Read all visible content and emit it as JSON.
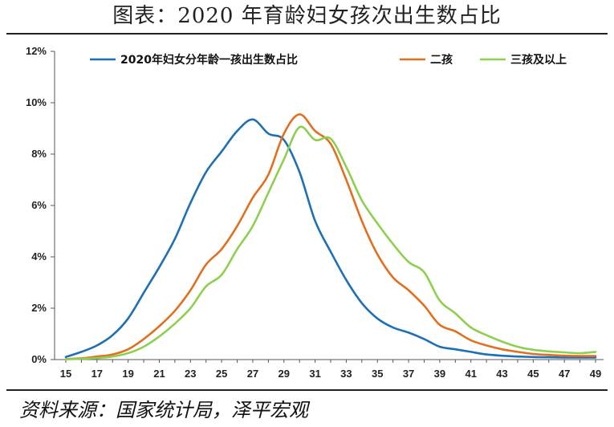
{
  "page": {
    "title": "图表：2020 年育龄妇女孩次出生数占比",
    "source": "资料来源：国家统计局，泽平宏观"
  },
  "chart_data": {
    "type": "line",
    "title": "图表：2020 年育龄妇女孩次出生数占比",
    "xlabel": "",
    "ylabel": "",
    "x": [
      15,
      16,
      17,
      18,
      19,
      20,
      21,
      22,
      23,
      24,
      25,
      26,
      27,
      28,
      29,
      30,
      31,
      32,
      33,
      34,
      35,
      36,
      37,
      38,
      39,
      40,
      41,
      42,
      43,
      44,
      45,
      46,
      47,
      48,
      49
    ],
    "xticks": [
      15,
      17,
      19,
      21,
      23,
      25,
      27,
      29,
      31,
      33,
      35,
      37,
      39,
      41,
      43,
      45,
      47,
      49
    ],
    "xlim": [
      15,
      49
    ],
    "ylim": [
      0,
      12
    ],
    "yticks": [
      0,
      2,
      4,
      6,
      8,
      10,
      12
    ],
    "ytick_format": "percent",
    "grid": false,
    "legend": "top",
    "series": [
      {
        "name": "2020年妇女分年龄一孩出生数占比",
        "color": "#1f6fb5",
        "values": [
          0.1,
          0.3,
          0.55,
          0.95,
          1.6,
          2.6,
          3.6,
          4.7,
          6.1,
          7.3,
          8.1,
          8.9,
          9.35,
          8.8,
          8.55,
          7.3,
          5.4,
          4.2,
          3.1,
          2.2,
          1.6,
          1.25,
          1.05,
          0.8,
          0.5,
          0.4,
          0.3,
          0.2,
          0.15,
          0.12,
          0.1,
          0.09,
          0.08,
          0.08,
          0.08
        ]
      },
      {
        "name": "二孩",
        "color": "#e07020",
        "values": [
          0.02,
          0.05,
          0.12,
          0.2,
          0.4,
          0.8,
          1.3,
          1.9,
          2.7,
          3.7,
          4.3,
          5.2,
          6.3,
          7.2,
          8.8,
          9.55,
          8.9,
          8.4,
          7.0,
          5.4,
          4.1,
          3.2,
          2.7,
          2.1,
          1.35,
          1.1,
          0.75,
          0.55,
          0.4,
          0.3,
          0.22,
          0.18,
          0.15,
          0.14,
          0.14
        ]
      },
      {
        "name": "三孩及以上",
        "color": "#8ecf4f",
        "values": [
          0.01,
          0.03,
          0.06,
          0.12,
          0.25,
          0.5,
          0.9,
          1.4,
          2.0,
          2.85,
          3.3,
          4.3,
          5.2,
          6.5,
          7.8,
          9.05,
          8.55,
          8.6,
          7.5,
          6.2,
          5.3,
          4.5,
          3.8,
          3.4,
          2.3,
          1.8,
          1.25,
          0.95,
          0.7,
          0.5,
          0.38,
          0.32,
          0.28,
          0.25,
          0.3
        ]
      }
    ]
  }
}
